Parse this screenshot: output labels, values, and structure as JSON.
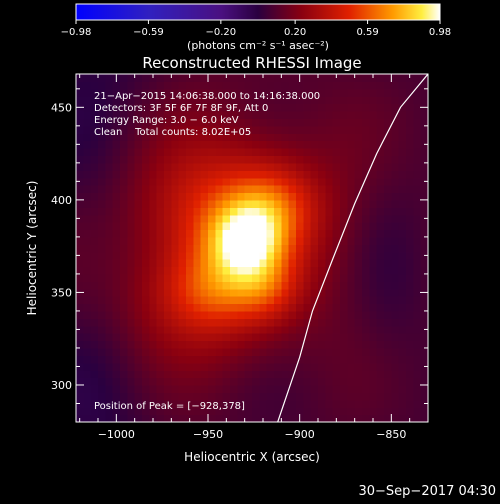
{
  "chart_data": {
    "type": "heatmap",
    "title": "Reconstructed RHESSI Image",
    "xlabel": "Heliocentric X (arcsec)",
    "ylabel": "Heliocentric Y (arcsec)",
    "x_ticks": [
      -1000,
      -950,
      -900,
      -850
    ],
    "y_ticks": [
      300,
      350,
      400,
      450
    ],
    "x_tick_labels": [
      "−1000",
      "−950",
      "−900",
      "−850"
    ],
    "y_tick_labels": [
      "300",
      "350",
      "400",
      "450"
    ],
    "xlim": [
      -1022,
      -830
    ],
    "ylim": [
      280,
      468
    ],
    "colorbar": {
      "ticks": [
        -0.98,
        -0.59,
        -0.2,
        0.2,
        0.59,
        0.98
      ],
      "tick_labels": [
        "−0.98",
        "−0.59",
        "−0.20",
        "0.20",
        "0.59",
        "0.98"
      ],
      "label": "(photons cm⁻² s⁻¹ asec⁻²)",
      "range": [
        -0.98,
        0.98
      ]
    },
    "info_lines": [
      "21−Apr−2015 14:06:38.000 to 14:16:38.000",
      "Detectors: 3F 5F 6F 7F 8F 9F, Att 0",
      "Energy Range: 3.0 − 6.0 keV",
      "Clean    Total counts: 8.02E+05"
    ],
    "peak_label": "Position of Peak = [−928,378]",
    "peak": [
      -928,
      378
    ],
    "limb_points": [
      [
        -912,
        280
      ],
      [
        -900,
        315
      ],
      [
        -893,
        340
      ],
      [
        -882,
        368
      ],
      [
        -870,
        398
      ],
      [
        -858,
        425
      ],
      [
        -845,
        450
      ],
      [
        -830,
        468
      ]
    ],
    "sources": [
      {
        "x": -929,
        "y": 378,
        "sx": 14,
        "sy": 14,
        "amp": 0.55
      },
      {
        "x": -940,
        "y": 390,
        "sx": 34,
        "sy": 28,
        "amp": 0.35
      },
      {
        "x": -915,
        "y": 398,
        "sx": 16,
        "sy": 14,
        "amp": 0.22
      },
      {
        "x": -945,
        "y": 352,
        "sx": 18,
        "sy": 14,
        "amp": 0.22
      },
      {
        "x": -918,
        "y": 352,
        "sx": 12,
        "sy": 12,
        "amp": 0.18
      },
      {
        "x": -960,
        "y": 342,
        "sx": 30,
        "sy": 22,
        "amp": 0.18
      },
      {
        "x": -935,
        "y": 382,
        "sx": 60,
        "sy": 60,
        "amp": 0.12
      }
    ],
    "colors": {
      "neg_low": "#0000ff",
      "mid": "#320040",
      "pos_high": "#ffffff",
      "limb": "#ffffff"
    }
  },
  "footer": {
    "timestamp": "30−Sep−2017 04:30"
  }
}
